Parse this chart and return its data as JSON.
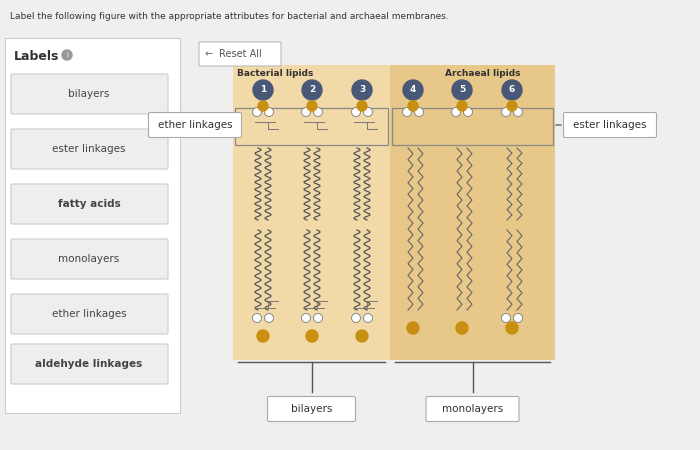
{
  "title": "Label the following figure with the appropriate attributes for bacterial and archaeal membranes.",
  "bg_color": "#efefef",
  "panel_bg_bacterial": "#f2d9a8",
  "panel_bg_archaeal": "#e8c888",
  "labels_panel": [
    "bilayers",
    "ester linkages",
    "fatty acids",
    "monolayers",
    "ether linkages",
    "aldehyde linkages"
  ],
  "labels_bold": [
    "fatty acids",
    "aldehyde linkages"
  ],
  "bacterial_title": "Bacterial lipids",
  "archaeal_title": "Archaeal lipids",
  "numbered_circles": [
    "1",
    "2",
    "3",
    "4",
    "5",
    "6"
  ],
  "circle_color": "#4a5878",
  "gold_color": "#c89010",
  "connector_left_label": "ether linkages",
  "connector_right_label": "ester linkages",
  "bottom_left_label": "bilayers",
  "bottom_right_label": "monolayers",
  "reset_button": "Reset All",
  "figsize": [
    7.0,
    4.5
  ],
  "dpi": 100
}
